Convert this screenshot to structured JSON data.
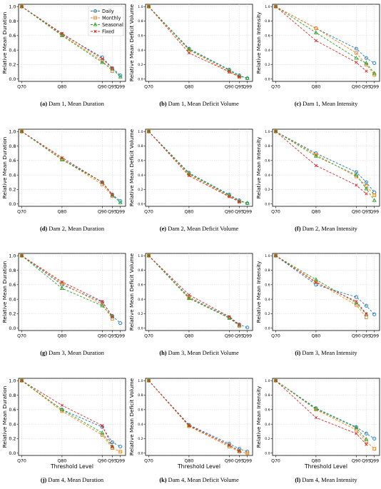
{
  "legend": {
    "entries": [
      {
        "name": "Daily",
        "color": "#1f77b4",
        "marker": "circle"
      },
      {
        "name": "Monthly",
        "color": "#ff7f0e",
        "marker": "square"
      },
      {
        "name": "Seasonal",
        "color": "#2ca02c",
        "marker": "triangle"
      },
      {
        "name": "Fixed",
        "color": "#d62728",
        "marker": "x"
      }
    ]
  },
  "chart_data": [
    {
      "type": "line",
      "panel": "a",
      "caption_label": "(a)",
      "caption_text": "Dam 1, Mean Duration",
      "ylabel": "Relative Mean Duration",
      "xlabel": "",
      "categories": [
        "Q70",
        "Q80",
        "Q90",
        "Q95",
        "Q99"
      ],
      "ylim": [
        0,
        1
      ],
      "yticks": [
        "0.0",
        "0.2",
        "0.4",
        "0.6",
        "0.8",
        "1.0"
      ],
      "grid": true,
      "legend": "top-right",
      "series": [
        {
          "name": "Daily",
          "values": [
            1.0,
            0.62,
            0.3,
            0.15,
            0.05
          ]
        },
        {
          "name": "Monthly",
          "values": [
            1.0,
            0.61,
            0.25,
            0.11,
            null
          ]
        },
        {
          "name": "Seasonal",
          "values": [
            1.0,
            0.6,
            0.23,
            0.14,
            0.03
          ]
        },
        {
          "name": "Fixed",
          "values": [
            1.0,
            0.63,
            0.28,
            0.15,
            null
          ]
        }
      ]
    },
    {
      "type": "line",
      "panel": "b",
      "caption_label": "(b)",
      "caption_text": "Dam 1, Mean Deficit Volume",
      "ylabel": "Relative Mean Deficit Volume",
      "xlabel": "",
      "categories": [
        "Q70",
        "Q80",
        "Q90",
        "Q95",
        "Q99"
      ],
      "ylim": [
        0,
        1
      ],
      "yticks": [
        "0.0",
        "0.2",
        "0.4",
        "0.6",
        "0.8",
        "1.0"
      ],
      "grid": true,
      "series": [
        {
          "name": "Daily",
          "values": [
            1.0,
            0.42,
            0.13,
            0.05,
            0.01
          ]
        },
        {
          "name": "Monthly",
          "values": [
            1.0,
            0.4,
            0.1,
            0.03,
            null
          ]
        },
        {
          "name": "Seasonal",
          "values": [
            1.0,
            0.41,
            0.12,
            0.04,
            0.01
          ]
        },
        {
          "name": "Fixed",
          "values": [
            1.0,
            0.36,
            0.1,
            0.03,
            null
          ]
        }
      ]
    },
    {
      "type": "line",
      "panel": "c",
      "caption_label": "(c)",
      "caption_text": "Dam 1, Mean Intensity",
      "ylabel": "Relative Mean Intensity",
      "xlabel": "",
      "categories": [
        "Q70",
        "Q80",
        "Q90",
        "Q95",
        "Q99"
      ],
      "ylim": [
        0,
        1
      ],
      "yticks": [
        "0.0",
        "0.2",
        "0.4",
        "0.6",
        "0.8",
        "1.0"
      ],
      "grid": true,
      "series": [
        {
          "name": "Daily",
          "values": [
            1.0,
            0.7,
            0.42,
            0.29,
            0.22
          ]
        },
        {
          "name": "Monthly",
          "values": [
            1.0,
            0.7,
            0.36,
            0.2,
            0.06
          ]
        },
        {
          "name": "Seasonal",
          "values": [
            1.0,
            0.64,
            0.29,
            0.22,
            0.08
          ]
        },
        {
          "name": "Fixed",
          "values": [
            1.0,
            0.53,
            0.23,
            0.11,
            null
          ]
        }
      ]
    },
    {
      "type": "line",
      "panel": "d",
      "caption_label": "(d)",
      "caption_text": "Dam 2, Mean Duration",
      "ylabel": "Relative Mean Duration",
      "xlabel": "",
      "categories": [
        "Q70",
        "Q80",
        "Q90",
        "Q95",
        "Q99"
      ],
      "ylim": [
        0,
        1
      ],
      "yticks": [
        "0.0",
        "0.2",
        "0.4",
        "0.6",
        "0.8",
        "1.0"
      ],
      "grid": true,
      "series": [
        {
          "name": "Daily",
          "values": [
            1.0,
            0.62,
            0.3,
            0.13,
            0.04
          ]
        },
        {
          "name": "Monthly",
          "values": [
            1.0,
            0.62,
            0.27,
            0.11,
            null
          ]
        },
        {
          "name": "Seasonal",
          "values": [
            1.0,
            0.61,
            0.3,
            0.12,
            0.02
          ]
        },
        {
          "name": "Fixed",
          "values": [
            1.0,
            0.64,
            0.3,
            0.13,
            null
          ]
        }
      ]
    },
    {
      "type": "line",
      "panel": "e",
      "caption_label": "(e)",
      "caption_text": "Dam 2, Mean Deficit Volume",
      "ylabel": "Relative Mean Deficit Volume",
      "xlabel": "",
      "categories": [
        "Q70",
        "Q80",
        "Q90",
        "Q95",
        "Q99"
      ],
      "ylim": [
        0,
        1
      ],
      "yticks": [
        "0.0",
        "0.2",
        "0.4",
        "0.6",
        "0.8",
        "1.0"
      ],
      "grid": true,
      "series": [
        {
          "name": "Daily",
          "values": [
            1.0,
            0.43,
            0.13,
            0.05,
            0.01
          ]
        },
        {
          "name": "Monthly",
          "values": [
            1.0,
            0.41,
            0.11,
            0.03,
            null
          ]
        },
        {
          "name": "Seasonal",
          "values": [
            1.0,
            0.42,
            0.12,
            0.04,
            0.01
          ]
        },
        {
          "name": "Fixed",
          "values": [
            1.0,
            0.39,
            0.1,
            0.03,
            null
          ]
        }
      ]
    },
    {
      "type": "line",
      "panel": "f",
      "caption_label": "(f)",
      "caption_text": "Dam 2, Mean Intensity",
      "ylabel": "Relative Mean Intensity",
      "xlabel": "",
      "categories": [
        "Q70",
        "Q80",
        "Q90",
        "Q95",
        "Q99"
      ],
      "ylim": [
        0,
        1
      ],
      "yticks": [
        "0.0",
        "0.2",
        "0.4",
        "0.6",
        "0.8",
        "1.0"
      ],
      "grid": true,
      "series": [
        {
          "name": "Daily",
          "values": [
            1.0,
            0.7,
            0.44,
            0.3,
            0.16
          ]
        },
        {
          "name": "Monthly",
          "values": [
            1.0,
            0.68,
            0.38,
            0.25,
            0.12
          ]
        },
        {
          "name": "Seasonal",
          "values": [
            1.0,
            0.66,
            0.4,
            0.21,
            0.05
          ]
        },
        {
          "name": "Fixed",
          "values": [
            1.0,
            0.53,
            0.26,
            0.14,
            null
          ]
        }
      ]
    },
    {
      "type": "line",
      "panel": "g",
      "caption_label": "(g)",
      "caption_text": "Dam 3, Mean Duration",
      "ylabel": "Relative Mean Duration",
      "xlabel": "",
      "categories": [
        "Q70",
        "Q80",
        "Q90",
        "Q95",
        "Q99"
      ],
      "ylim": [
        0,
        1
      ],
      "yticks": [
        "0.0",
        "0.2",
        "0.4",
        "0.6",
        "0.8",
        "1.0"
      ],
      "grid": true,
      "series": [
        {
          "name": "Daily",
          "values": [
            1.0,
            0.6,
            0.36,
            0.17,
            0.07
          ]
        },
        {
          "name": "Monthly",
          "values": [
            1.0,
            0.62,
            0.33,
            0.13,
            null
          ]
        },
        {
          "name": "Seasonal",
          "values": [
            1.0,
            0.55,
            0.31,
            0.16,
            null
          ]
        },
        {
          "name": "Fixed",
          "values": [
            1.0,
            0.64,
            0.37,
            0.16,
            null
          ]
        }
      ]
    },
    {
      "type": "line",
      "panel": "h",
      "caption_label": "(h)",
      "caption_text": "Dam 3, Mean Deficit Volume",
      "ylabel": "Relative Mean Deficit Volume",
      "xlabel": "",
      "categories": [
        "Q70",
        "Q80",
        "Q90",
        "Q95",
        "Q99"
      ],
      "ylim": [
        0,
        1
      ],
      "yticks": [
        "0.0",
        "0.2",
        "0.4",
        "0.6",
        "0.8",
        "1.0"
      ],
      "grid": true,
      "series": [
        {
          "name": "Daily",
          "values": [
            1.0,
            0.43,
            0.15,
            0.05,
            0.01
          ]
        },
        {
          "name": "Monthly",
          "values": [
            1.0,
            0.42,
            0.14,
            0.03,
            null
          ]
        },
        {
          "name": "Seasonal",
          "values": [
            1.0,
            0.41,
            0.14,
            0.04,
            null
          ]
        },
        {
          "name": "Fixed",
          "values": [
            1.0,
            0.46,
            0.16,
            0.05,
            null
          ]
        }
      ]
    },
    {
      "type": "line",
      "panel": "i",
      "caption_label": "(i)",
      "caption_text": "Dam 3, Mean Intensity",
      "ylabel": "Relative Mean Intensity",
      "xlabel": "",
      "categories": [
        "Q70",
        "Q80",
        "Q90",
        "Q95",
        "Q99"
      ],
      "ylim": [
        0,
        1
      ],
      "yticks": [
        "0.0",
        "0.2",
        "0.4",
        "0.6",
        "0.8",
        "1.0"
      ],
      "grid": true,
      "series": [
        {
          "name": "Daily",
          "values": [
            1.0,
            0.6,
            0.43,
            0.31,
            0.19
          ]
        },
        {
          "name": "Monthly",
          "values": [
            1.0,
            0.64,
            0.32,
            0.15,
            null
          ]
        },
        {
          "name": "Seasonal",
          "values": [
            1.0,
            0.67,
            0.35,
            0.19,
            null
          ]
        },
        {
          "name": "Fixed",
          "values": [
            1.0,
            0.63,
            0.37,
            0.2,
            null
          ]
        }
      ]
    },
    {
      "type": "line",
      "panel": "j",
      "caption_label": "(j)",
      "caption_text": "Dam 4, Mean Duration",
      "ylabel": "Relative Mean Duration",
      "xlabel": "Threshold Level",
      "categories": [
        "Q70",
        "Q80",
        "Q90",
        "Q95",
        "Q99"
      ],
      "ylim": [
        0,
        1
      ],
      "yticks": [
        "0.0",
        "0.2",
        "0.4",
        "0.6",
        "0.8",
        "1.0"
      ],
      "grid": true,
      "series": [
        {
          "name": "Daily",
          "values": [
            1.0,
            0.6,
            0.36,
            0.15,
            0.09
          ]
        },
        {
          "name": "Monthly",
          "values": [
            1.0,
            0.58,
            0.25,
            0.07,
            0.02
          ]
        },
        {
          "name": "Seasonal",
          "values": [
            1.0,
            0.6,
            0.28,
            0.09,
            null
          ]
        },
        {
          "name": "Fixed",
          "values": [
            1.0,
            0.66,
            0.38,
            0.09,
            null
          ]
        }
      ]
    },
    {
      "type": "line",
      "panel": "k",
      "caption_label": "(k)",
      "caption_text": "Dam 4, Mean Deficit Volume",
      "ylabel": "Relative Mean Deficit Volume",
      "xlabel": "Threshold Level",
      "categories": [
        "Q70",
        "Q80",
        "Q90",
        "Q95",
        "Q99"
      ],
      "ylim": [
        0,
        1
      ],
      "yticks": [
        "0.0",
        "0.2",
        "0.4",
        "0.6",
        "0.8",
        "1.0"
      ],
      "grid": true,
      "series": [
        {
          "name": "Daily",
          "values": [
            1.0,
            0.39,
            0.13,
            0.06,
            0.02
          ]
        },
        {
          "name": "Monthly",
          "values": [
            1.0,
            0.37,
            0.09,
            0.02,
            0.0
          ]
        },
        {
          "name": "Seasonal",
          "values": [
            1.0,
            0.38,
            0.11,
            0.03,
            null
          ]
        },
        {
          "name": "Fixed",
          "values": [
            1.0,
            0.38,
            0.11,
            0.03,
            null
          ]
        }
      ]
    },
    {
      "type": "line",
      "panel": "l",
      "caption_label": "(l)",
      "caption_text": "Dam 4, Mean Intensity",
      "ylabel": "Relative Mean Intensity",
      "xlabel": "Threshold Level",
      "categories": [
        "Q70",
        "Q80",
        "Q90",
        "Q95",
        "Q99"
      ],
      "ylim": [
        0,
        1
      ],
      "yticks": [
        "0.0",
        "0.2",
        "0.4",
        "0.6",
        "0.8",
        "1.0"
      ],
      "grid": true,
      "series": [
        {
          "name": "Daily",
          "values": [
            1.0,
            0.62,
            0.36,
            0.27,
            0.2
          ]
        },
        {
          "name": "Monthly",
          "values": [
            1.0,
            0.6,
            0.32,
            0.16,
            0.06
          ]
        },
        {
          "name": "Seasonal",
          "values": [
            1.0,
            0.61,
            0.35,
            0.19,
            null
          ]
        },
        {
          "name": "Fixed",
          "values": [
            1.0,
            0.49,
            0.27,
            0.12,
            null
          ]
        }
      ]
    }
  ]
}
